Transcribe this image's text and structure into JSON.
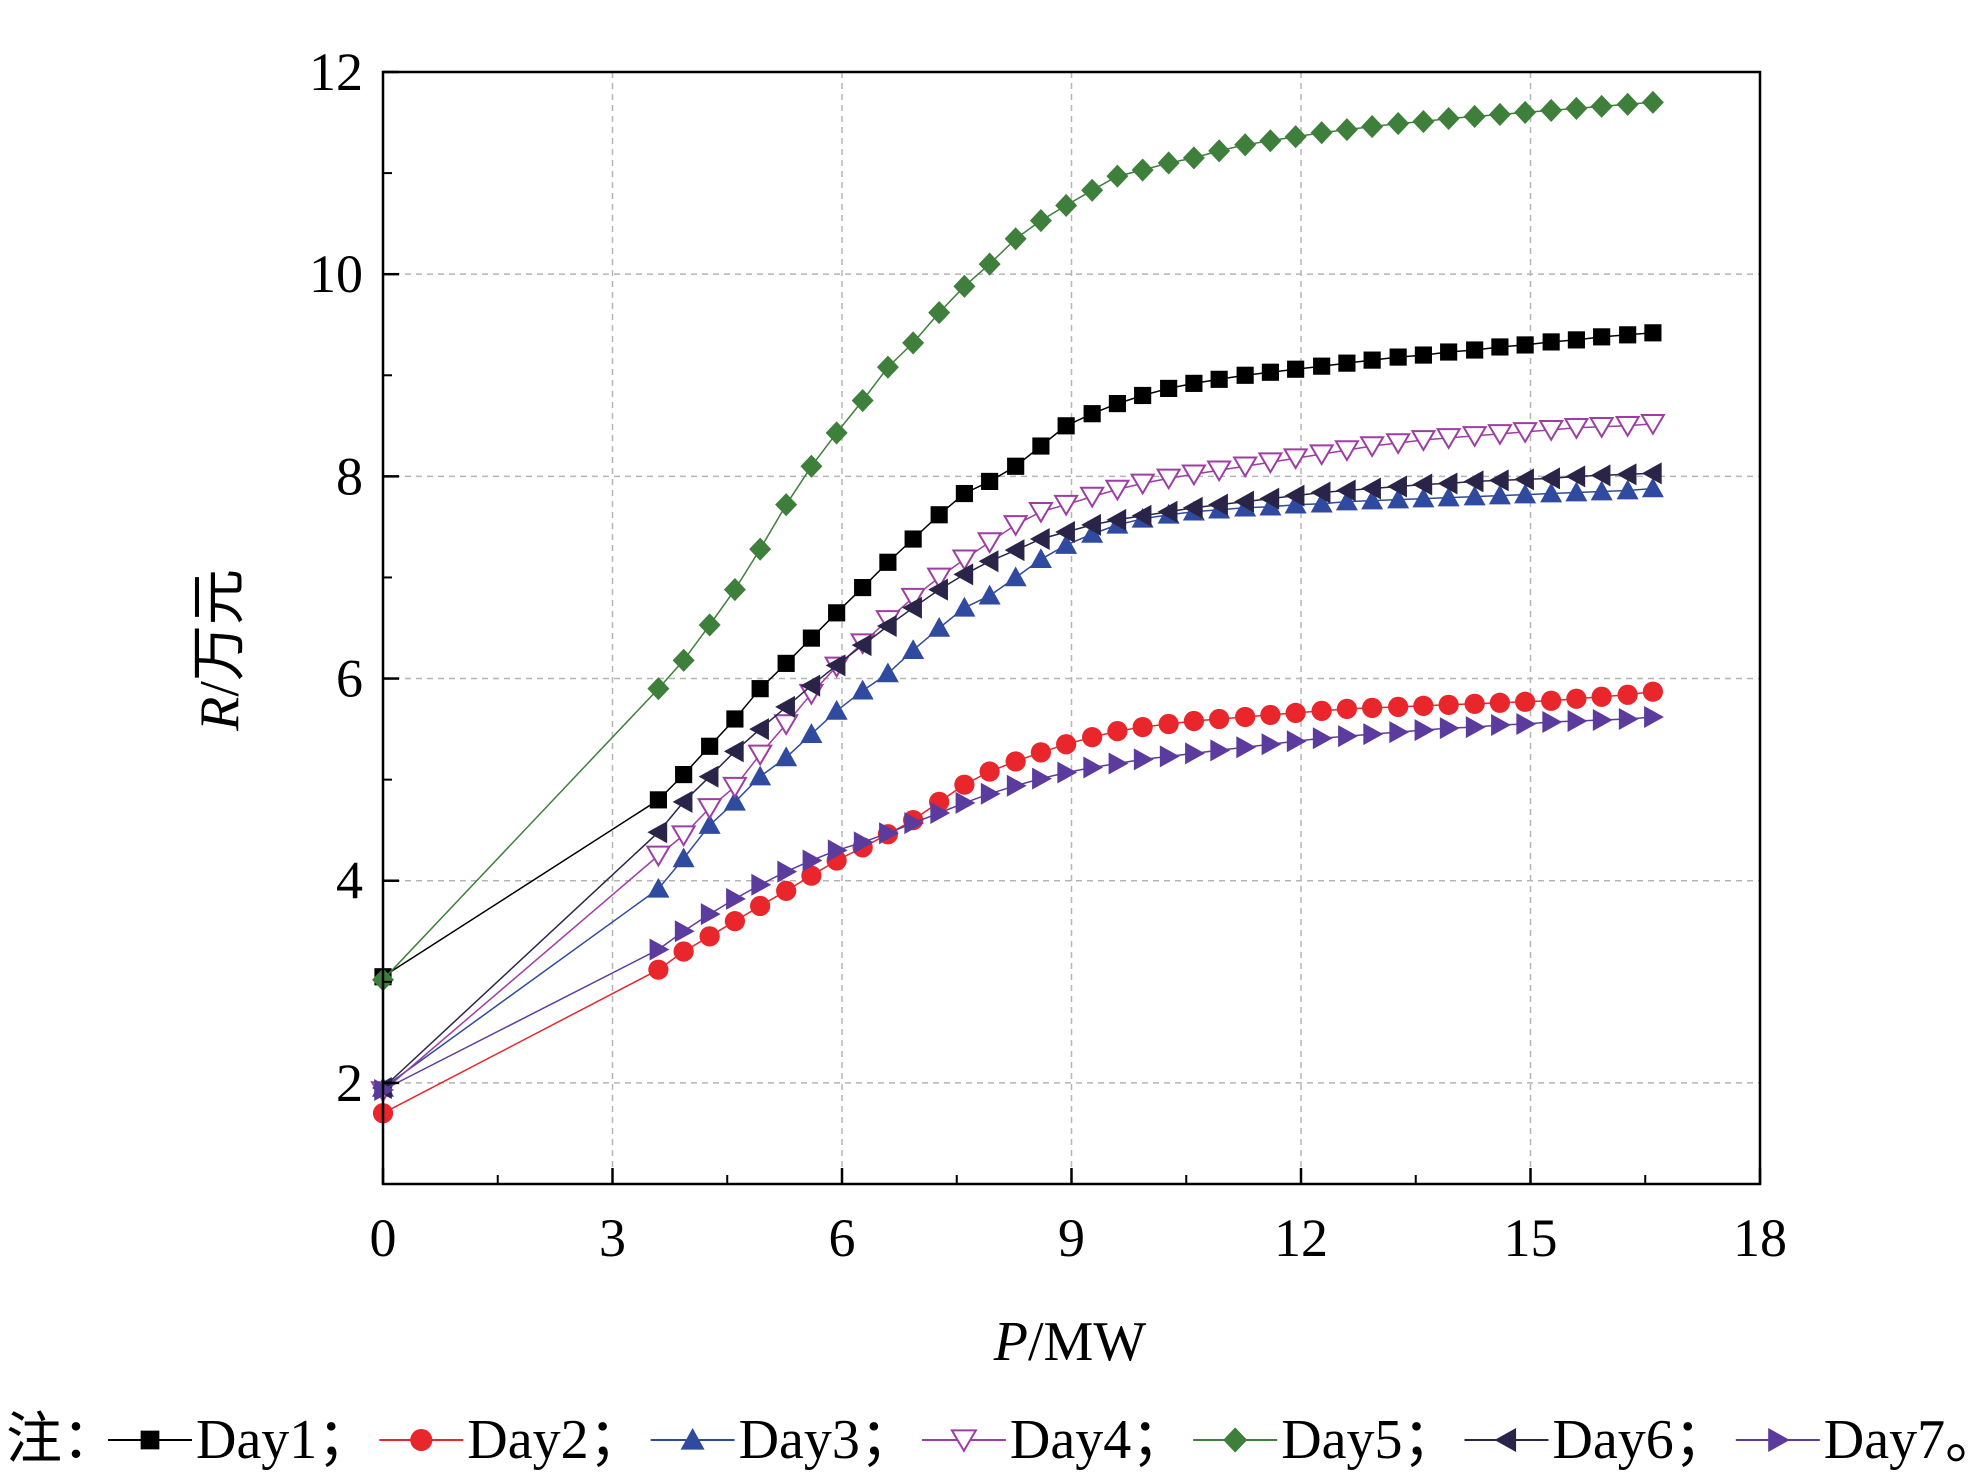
{
  "chart_data": {
    "type": "line",
    "xlabel_italic": "P",
    "xlabel_unit": "/MW",
    "ylabel_italic": "R",
    "ylabel_unit": "/万元",
    "xlim": [
      0,
      18
    ],
    "ylim": [
      1,
      12
    ],
    "xticks": [
      0,
      3,
      6,
      9,
      12,
      15,
      18
    ],
    "yticks": [
      2,
      4,
      6,
      8,
      10,
      12
    ],
    "grid": true,
    "legend_prefix": "注：",
    "legend_separator": "；",
    "legend_terminator": "。",
    "x": [
      0,
      3.6,
      3.93,
      4.27,
      4.6,
      4.93,
      5.27,
      5.6,
      5.93,
      6.27,
      6.6,
      6.93,
      7.27,
      7.6,
      7.93,
      8.27,
      8.6,
      8.93,
      9.27,
      9.6,
      9.93,
      10.27,
      10.6,
      10.93,
      11.27,
      11.6,
      11.93,
      12.27,
      12.6,
      12.93,
      13.27,
      13.6,
      13.93,
      14.27,
      14.6,
      14.93,
      15.27,
      15.6,
      15.93,
      16.27,
      16.6
    ],
    "series": [
      {
        "name": "Day1",
        "color": "#000000",
        "marker": "square",
        "values": [
          3.05,
          4.8,
          5.05,
          5.33,
          5.6,
          5.9,
          6.15,
          6.4,
          6.65,
          6.9,
          7.15,
          7.38,
          7.62,
          7.83,
          7.95,
          8.1,
          8.3,
          8.5,
          8.62,
          8.72,
          8.8,
          8.87,
          8.92,
          8.96,
          9.0,
          9.03,
          9.06,
          9.09,
          9.12,
          9.15,
          9.18,
          9.2,
          9.23,
          9.25,
          9.28,
          9.3,
          9.33,
          9.35,
          9.38,
          9.4,
          9.42
        ]
      },
      {
        "name": "Day2",
        "color": "#e8262b",
        "marker": "circle",
        "values": [
          1.7,
          3.12,
          3.3,
          3.45,
          3.6,
          3.75,
          3.9,
          4.05,
          4.2,
          4.33,
          4.46,
          4.6,
          4.78,
          4.95,
          5.08,
          5.18,
          5.27,
          5.35,
          5.42,
          5.48,
          5.52,
          5.55,
          5.58,
          5.6,
          5.62,
          5.64,
          5.66,
          5.68,
          5.7,
          5.71,
          5.72,
          5.73,
          5.74,
          5.75,
          5.76,
          5.77,
          5.78,
          5.8,
          5.82,
          5.84,
          5.87
        ]
      },
      {
        "name": "Day3",
        "color": "#2f4a9f",
        "marker": "triangle-up",
        "values": [
          1.95,
          3.92,
          4.22,
          4.55,
          4.78,
          5.03,
          5.22,
          5.45,
          5.68,
          5.88,
          6.05,
          6.28,
          6.5,
          6.7,
          6.82,
          7.0,
          7.18,
          7.32,
          7.43,
          7.52,
          7.58,
          7.62,
          7.65,
          7.67,
          7.69,
          7.7,
          7.72,
          7.73,
          7.75,
          7.76,
          7.77,
          7.78,
          7.79,
          7.8,
          7.81,
          7.82,
          7.83,
          7.84,
          7.85,
          7.86,
          7.88
        ]
      },
      {
        "name": "Day4",
        "color": "#9e3da3",
        "marker": "triangle-down-open",
        "values": [
          1.92,
          4.25,
          4.45,
          4.72,
          4.93,
          5.25,
          5.55,
          5.85,
          6.12,
          6.35,
          6.58,
          6.8,
          7.0,
          7.18,
          7.35,
          7.52,
          7.65,
          7.72,
          7.8,
          7.87,
          7.93,
          7.98,
          8.02,
          8.06,
          8.1,
          8.14,
          8.18,
          8.22,
          8.26,
          8.3,
          8.33,
          8.36,
          8.38,
          8.4,
          8.42,
          8.44,
          8.46,
          8.48,
          8.49,
          8.5,
          8.52
        ]
      },
      {
        "name": "Day5",
        "color": "#3f7f3c",
        "marker": "diamond",
        "values": [
          3.02,
          5.9,
          6.18,
          6.53,
          6.88,
          7.28,
          7.72,
          8.1,
          8.43,
          8.75,
          9.08,
          9.32,
          9.62,
          9.88,
          10.1,
          10.35,
          10.53,
          10.68,
          10.83,
          10.97,
          11.03,
          11.1,
          11.15,
          11.22,
          11.28,
          11.32,
          11.36,
          11.4,
          11.43,
          11.46,
          11.49,
          11.51,
          11.54,
          11.56,
          11.58,
          11.6,
          11.62,
          11.64,
          11.66,
          11.68,
          11.7
        ]
      },
      {
        "name": "Day6",
        "color": "#2a2548",
        "marker": "triangle-left",
        "values": [
          1.95,
          4.48,
          4.78,
          5.03,
          5.28,
          5.5,
          5.72,
          5.93,
          6.13,
          6.33,
          6.52,
          6.7,
          6.88,
          7.03,
          7.16,
          7.27,
          7.38,
          7.45,
          7.52,
          7.57,
          7.61,
          7.65,
          7.69,
          7.72,
          7.75,
          7.78,
          7.81,
          7.84,
          7.86,
          7.88,
          7.9,
          7.92,
          7.93,
          7.95,
          7.96,
          7.97,
          7.98,
          8.0,
          8.01,
          8.02,
          8.03
        ]
      },
      {
        "name": "Day7",
        "color": "#5b3c9e",
        "marker": "triangle-right",
        "values": [
          1.93,
          3.32,
          3.5,
          3.67,
          3.82,
          3.96,
          4.09,
          4.2,
          4.3,
          4.38,
          4.47,
          4.57,
          4.67,
          4.77,
          4.86,
          4.94,
          5.01,
          5.07,
          5.12,
          5.16,
          5.2,
          5.23,
          5.26,
          5.29,
          5.32,
          5.35,
          5.38,
          5.41,
          5.43,
          5.45,
          5.47,
          5.49,
          5.51,
          5.52,
          5.54,
          5.55,
          5.57,
          5.58,
          5.59,
          5.6,
          5.62
        ]
      }
    ]
  }
}
